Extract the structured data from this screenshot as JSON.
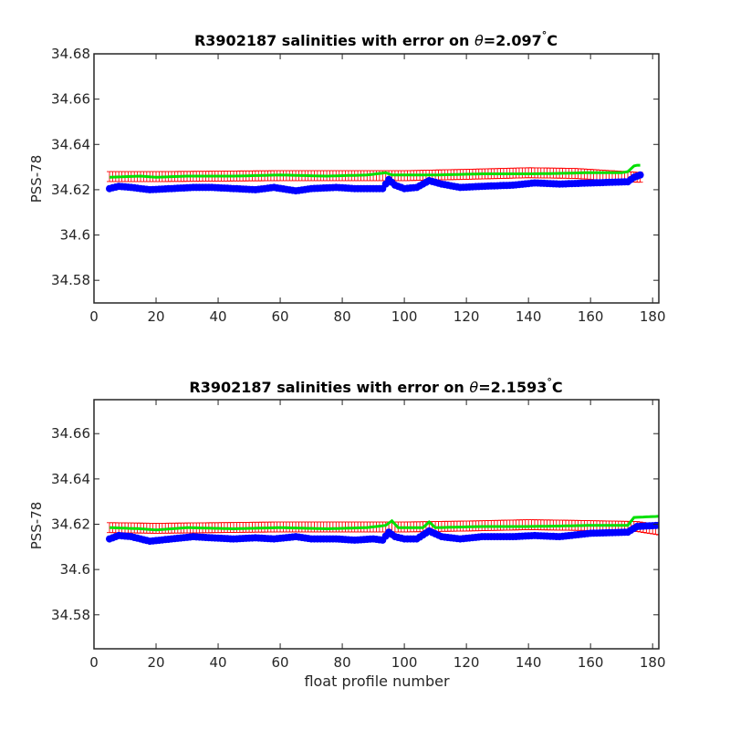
{
  "chart_data": [
    {
      "type": "line",
      "title_prefix": "R3902187 salinities with error on ",
      "title_theta": "θ",
      "title_value": "=2.097",
      "title_degree": "°",
      "title_unit": "C",
      "xlabel": "",
      "ylabel": "PSS-78",
      "xlim": [
        0,
        182
      ],
      "ylim": [
        34.57,
        34.68
      ],
      "xticks": [
        "0",
        "20",
        "40",
        "60",
        "80",
        "100",
        "120",
        "140",
        "160",
        "180"
      ],
      "yticks": [
        "34.58",
        "34.6",
        "34.62",
        "34.64",
        "34.66",
        "34.68"
      ],
      "grid": false,
      "x_start": 5,
      "x_end": 176,
      "series": [
        {
          "role": "float-salinity-points",
          "color": "#0000ff",
          "anchors": [
            [
              5,
              34.6205
            ],
            [
              8,
              34.6215
            ],
            [
              12,
              34.621
            ],
            [
              18,
              34.62
            ],
            [
              25,
              34.6205
            ],
            [
              32,
              34.621
            ],
            [
              38,
              34.621
            ],
            [
              45,
              34.6205
            ],
            [
              52,
              34.62
            ],
            [
              58,
              34.621
            ],
            [
              65,
              34.6195
            ],
            [
              70,
              34.6205
            ],
            [
              78,
              34.621
            ],
            [
              84,
              34.6205
            ],
            [
              90,
              34.6205
            ],
            [
              93,
              34.6205
            ],
            [
              95,
              34.6245
            ],
            [
              97,
              34.622
            ],
            [
              100,
              34.6205
            ],
            [
              104,
              34.621
            ],
            [
              108,
              34.624
            ],
            [
              112,
              34.6225
            ],
            [
              118,
              34.621
            ],
            [
              125,
              34.6215
            ],
            [
              135,
              34.622
            ],
            [
              142,
              34.623
            ],
            [
              150,
              34.6225
            ],
            [
              160,
              34.623
            ],
            [
              172,
              34.6235
            ],
            [
              174,
              34.6255
            ],
            [
              176,
              34.6265
            ]
          ]
        },
        {
          "role": "mapped-salinity-line",
          "color": "#00e000",
          "anchors": [
            [
              5,
              34.6255
            ],
            [
              15,
              34.626
            ],
            [
              20,
              34.6255
            ],
            [
              30,
              34.626
            ],
            [
              45,
              34.626
            ],
            [
              60,
              34.6265
            ],
            [
              75,
              34.626
            ],
            [
              88,
              34.6265
            ],
            [
              94,
              34.6275
            ],
            [
              96,
              34.6265
            ],
            [
              106,
              34.6265
            ],
            [
              110,
              34.6265
            ],
            [
              125,
              34.627
            ],
            [
              140,
              34.627
            ],
            [
              150,
              34.6272
            ],
            [
              158,
              34.6275
            ],
            [
              170,
              34.6275
            ],
            [
              172,
              34.628
            ],
            [
              174,
              34.6305
            ],
            [
              175,
              34.6308
            ]
          ]
        },
        {
          "role": "mapped-salinity-error-bars",
          "color": "#ff0000",
          "anchors": [
            [
              5,
              34.6258
            ],
            [
              20,
              34.6258
            ],
            [
              40,
              34.626
            ],
            [
              60,
              34.6262
            ],
            [
              80,
              34.6262
            ],
            [
              100,
              34.6262
            ],
            [
              120,
              34.6268
            ],
            [
              140,
              34.6275
            ],
            [
              155,
              34.6272
            ],
            [
              175,
              34.6255
            ]
          ],
          "error": 0.0022
        }
      ]
    },
    {
      "type": "line",
      "title_prefix": "R3902187 salinities with error on ",
      "title_theta": "θ",
      "title_value": "=2.1593",
      "title_degree": "°",
      "title_unit": "C",
      "xlabel": "float profile number",
      "ylabel": "PSS-78",
      "xlim": [
        0,
        182
      ],
      "ylim": [
        34.565,
        34.675
      ],
      "xticks": [
        "0",
        "20",
        "40",
        "60",
        "80",
        "100",
        "120",
        "140",
        "160",
        "180"
      ],
      "yticks": [
        "34.58",
        "34.6",
        "34.62",
        "34.64",
        "34.66"
      ],
      "grid": false,
      "x_start": 5,
      "x_end": 182,
      "series": [
        {
          "role": "float-salinity-points",
          "color": "#0000ff",
          "anchors": [
            [
              5,
              34.6135
            ],
            [
              8,
              34.615
            ],
            [
              12,
              34.6145
            ],
            [
              18,
              34.6125
            ],
            [
              25,
              34.6135
            ],
            [
              32,
              34.6145
            ],
            [
              38,
              34.614
            ],
            [
              45,
              34.6135
            ],
            [
              52,
              34.614
            ],
            [
              58,
              34.6135
            ],
            [
              65,
              34.6145
            ],
            [
              70,
              34.6135
            ],
            [
              78,
              34.6135
            ],
            [
              84,
              34.613
            ],
            [
              90,
              34.6135
            ],
            [
              93,
              34.613
            ],
            [
              95,
              34.6165
            ],
            [
              97,
              34.6145
            ],
            [
              100,
              34.6135
            ],
            [
              104,
              34.6135
            ],
            [
              108,
              34.617
            ],
            [
              112,
              34.6145
            ],
            [
              118,
              34.6135
            ],
            [
              125,
              34.6145
            ],
            [
              135,
              34.6145
            ],
            [
              142,
              34.615
            ],
            [
              150,
              34.6145
            ],
            [
              160,
              34.616
            ],
            [
              172,
              34.6165
            ],
            [
              175,
              34.619
            ],
            [
              182,
              34.6195
            ]
          ]
        },
        {
          "role": "mapped-salinity-line",
          "color": "#00e000",
          "anchors": [
            [
              5,
              34.6185
            ],
            [
              15,
              34.618
            ],
            [
              20,
              34.6175
            ],
            [
              30,
              34.6185
            ],
            [
              45,
              34.618
            ],
            [
              60,
              34.6185
            ],
            [
              75,
              34.618
            ],
            [
              88,
              34.6185
            ],
            [
              94,
              34.6195
            ],
            [
              96,
              34.6215
            ],
            [
              98,
              34.6185
            ],
            [
              106,
              34.6185
            ],
            [
              108,
              34.621
            ],
            [
              110,
              34.6185
            ],
            [
              125,
              34.619
            ],
            [
              140,
              34.619
            ],
            [
              150,
              34.6192
            ],
            [
              160,
              34.6195
            ],
            [
              172,
              34.6195
            ],
            [
              174,
              34.623
            ],
            [
              182,
              34.6235
            ]
          ]
        },
        {
          "role": "mapped-salinity-error-bars",
          "color": "#ff0000",
          "anchors": [
            [
              5,
              34.6185
            ],
            [
              20,
              34.6182
            ],
            [
              40,
              34.6185
            ],
            [
              60,
              34.6188
            ],
            [
              80,
              34.6188
            ],
            [
              100,
              34.6188
            ],
            [
              120,
              34.6192
            ],
            [
              140,
              34.6198
            ],
            [
              155,
              34.6195
            ],
            [
              175,
              34.619
            ],
            [
              182,
              34.6175
            ]
          ],
          "error": 0.0022
        }
      ]
    }
  ]
}
